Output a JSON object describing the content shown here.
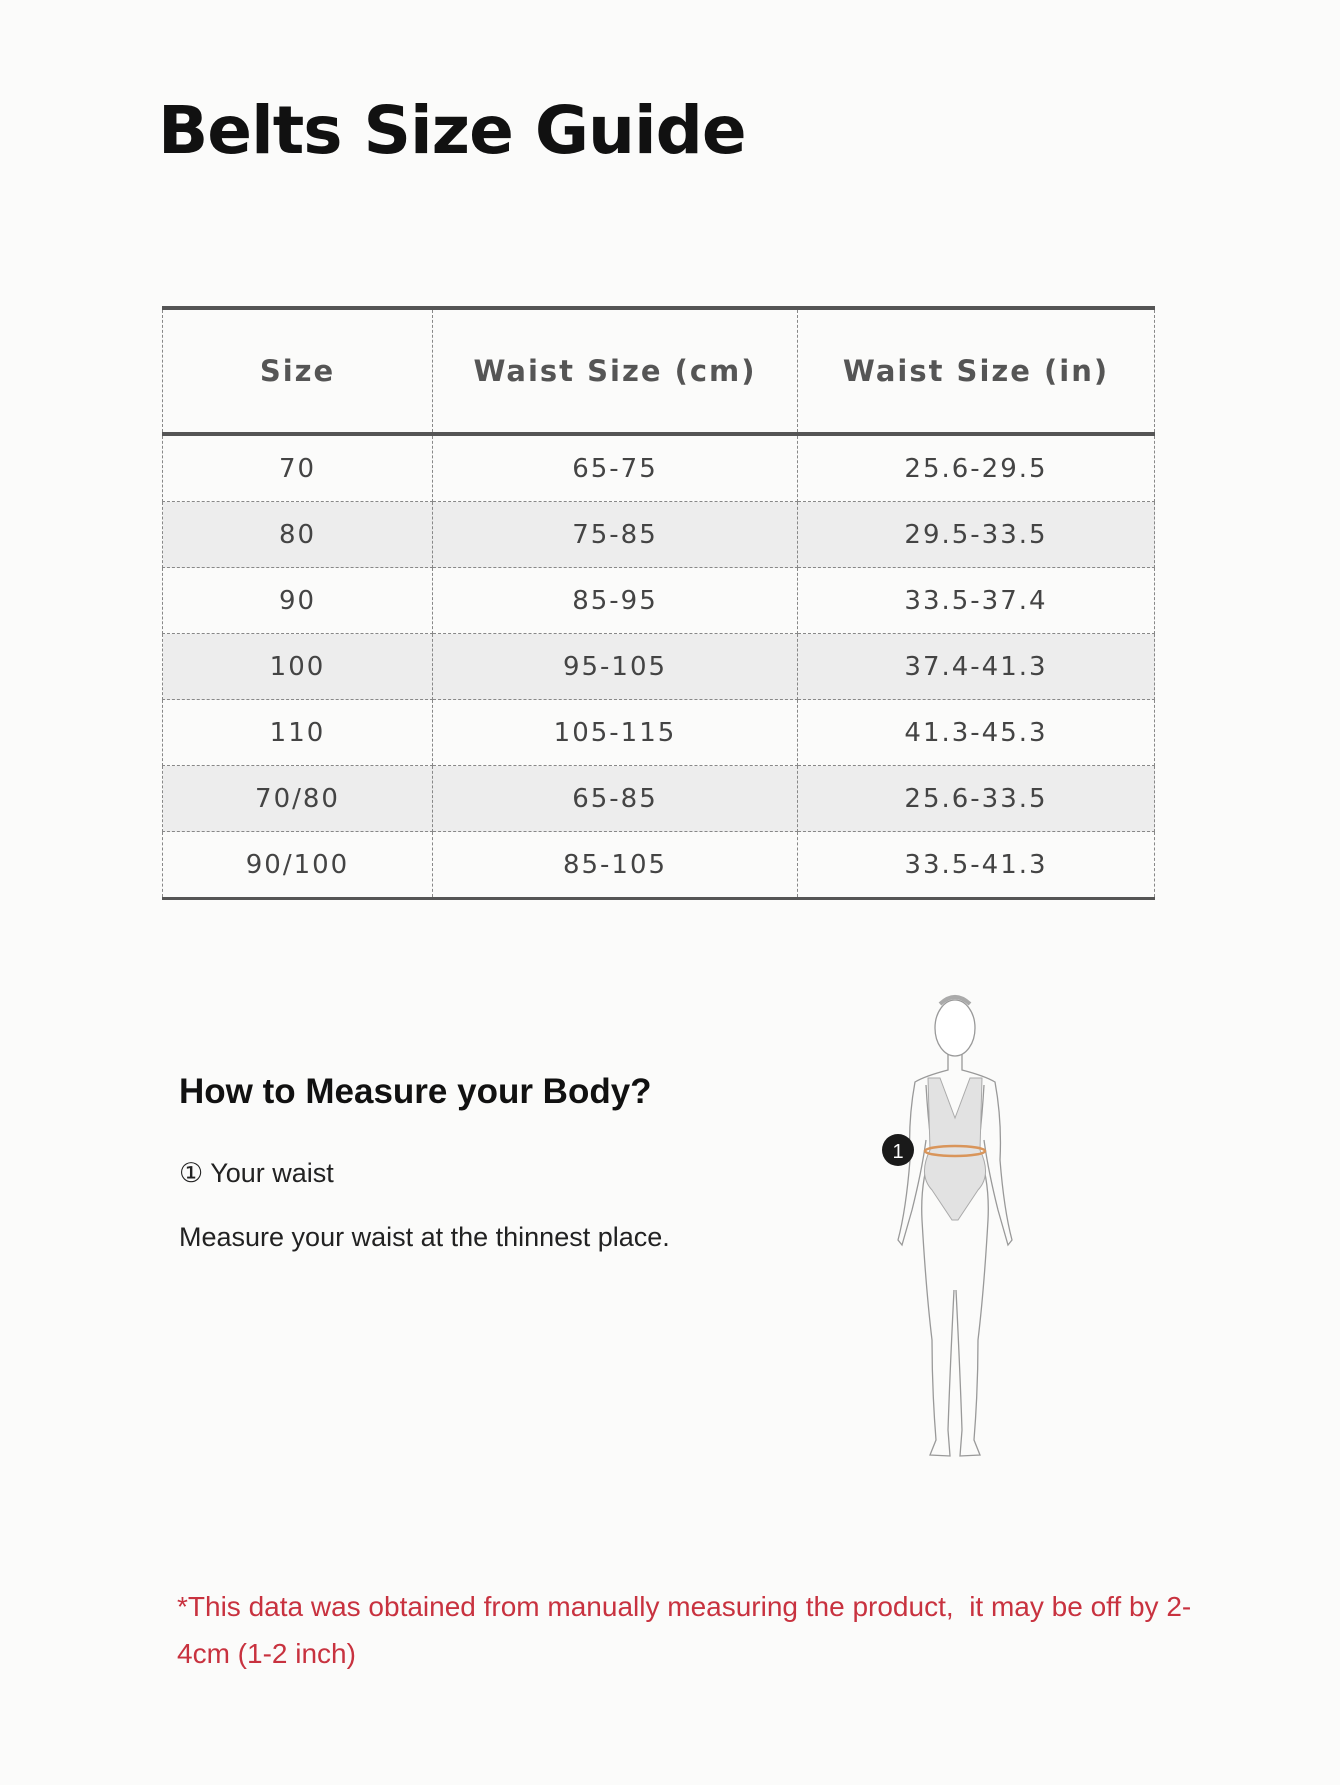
{
  "title": "Belts Size Guide",
  "table": {
    "headers": [
      "Size",
      "Waist Size (cm)",
      "Waist Size (in)"
    ],
    "rows": [
      [
        "70",
        "65-75",
        "25.6-29.5"
      ],
      [
        "80",
        "75-85",
        "29.5-33.5"
      ],
      [
        "90",
        "85-95",
        "33.5-37.4"
      ],
      [
        "100",
        "95-105",
        "37.4-41.3"
      ],
      [
        "110",
        "105-115",
        "41.3-45.3"
      ],
      [
        "70/80",
        "65-85",
        "25.6-33.5"
      ],
      [
        "90/100",
        "85-105",
        "33.5-41.3"
      ]
    ]
  },
  "measure": {
    "heading": "How to Measure your Body?",
    "step": "① Your waist",
    "description": "Measure your waist at the thinnest place.",
    "marker": "1"
  },
  "note": {
    "text": "*This data was obtained from manually measuring the product,  it may be off by 2-4cm (1-2 inch)",
    "color": "#c8323f"
  }
}
